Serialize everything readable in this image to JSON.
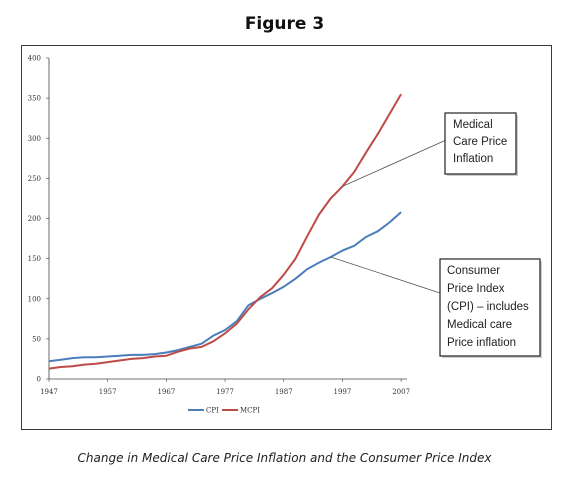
{
  "figure_title": "Figure 3",
  "caption": "Change in Medical Care Price Inflation and the Consumer Price Index",
  "chart_data": {
    "type": "line",
    "title": "",
    "xlabel": "",
    "ylabel": "",
    "xlim": [
      1947,
      2008
    ],
    "ylim": [
      0,
      400
    ],
    "yticks": [
      0,
      50,
      100,
      150,
      200,
      250,
      300,
      350,
      400
    ],
    "xticks": [
      1947,
      1957,
      1967,
      1977,
      1987,
      1997,
      2007
    ],
    "grid": false,
    "legend_position": "bottom-center",
    "x": [
      1947,
      1949,
      1951,
      1953,
      1955,
      1957,
      1959,
      1961,
      1963,
      1965,
      1967,
      1969,
      1971,
      1973,
      1975,
      1977,
      1979,
      1981,
      1983,
      1985,
      1987,
      1989,
      1991,
      1993,
      1995,
      1997,
      1999,
      2001,
      2003,
      2005,
      2007
    ],
    "series": [
      {
        "name": "CPI",
        "color": "#4a7ebb",
        "values": [
          22,
          24,
          26,
          27,
          27,
          28,
          29,
          30,
          30,
          31,
          33,
          36,
          40,
          44,
          54,
          61,
          72,
          92,
          100,
          107,
          115,
          125,
          137,
          145,
          152,
          160,
          166,
          177,
          184,
          195,
          208
        ]
      },
      {
        "name": "MCPI",
        "color": "#be4b48",
        "values": [
          13,
          15,
          16,
          18,
          19,
          21,
          23,
          25,
          26,
          28,
          29,
          34,
          38,
          40,
          47,
          57,
          69,
          87,
          102,
          113,
          130,
          150,
          178,
          205,
          225,
          240,
          258,
          282,
          305,
          330,
          355
        ]
      }
    ],
    "callouts": [
      {
        "target_series": "MCPI",
        "target_x": 1997,
        "lines": [
          "Medical",
          "Care Price",
          "Inflation"
        ]
      },
      {
        "target_series": "CPI",
        "target_x": 1996,
        "lines": [
          "Consumer",
          "Price Index",
          "(CPI) – includes",
          "Medical care",
          "Price inflation"
        ]
      }
    ]
  }
}
